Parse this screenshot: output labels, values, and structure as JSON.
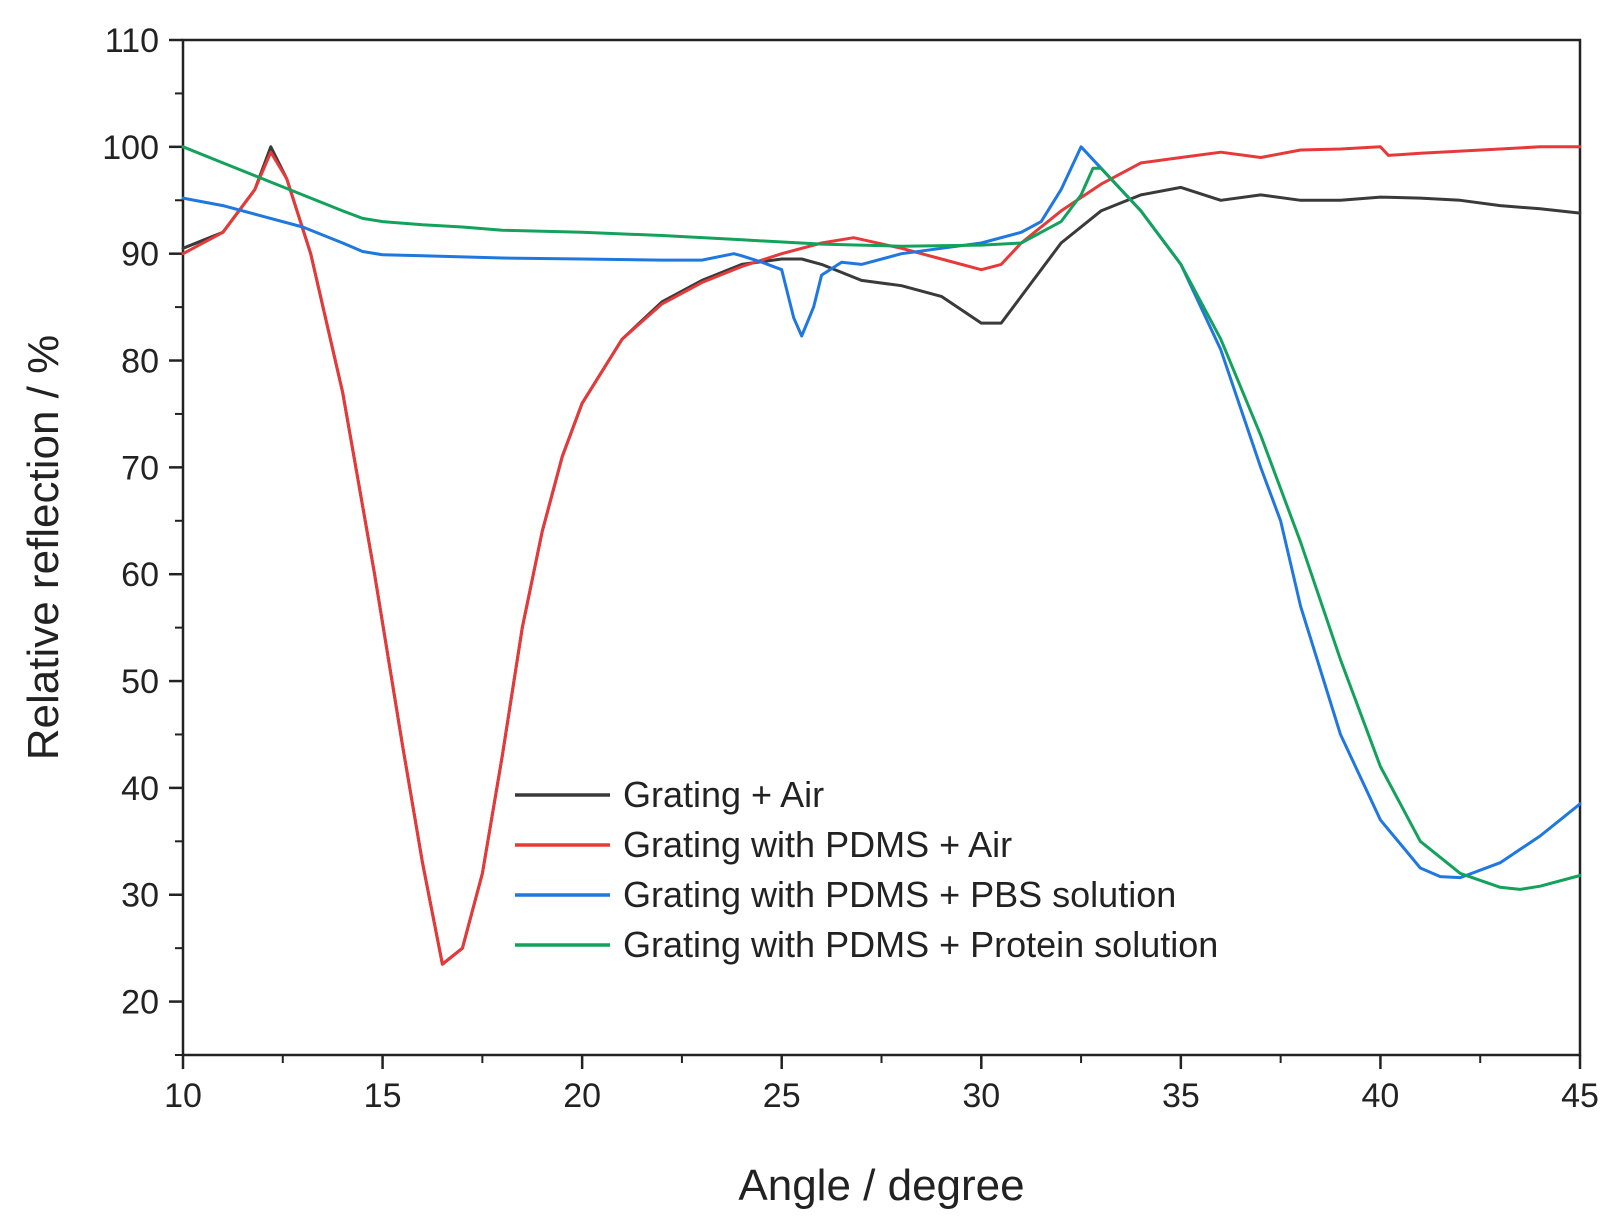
{
  "chart_data": {
    "type": "line",
    "title": "",
    "xlabel": "Angle / degree",
    "ylabel": "Relative reflection / %",
    "xlim": [
      10,
      45
    ],
    "ylim": [
      15,
      110
    ],
    "xticks": [
      10,
      15,
      20,
      25,
      30,
      35,
      40,
      45
    ],
    "yticks": [
      20,
      30,
      40,
      50,
      60,
      70,
      80,
      90,
      100,
      110
    ],
    "grid": false,
    "legend_position": "bottom-center",
    "series": [
      {
        "name": "Grating + Air",
        "color": "#3a3a3a",
        "points": [
          [
            10,
            90.5
          ],
          [
            11,
            92
          ],
          [
            11.8,
            96
          ],
          [
            12.2,
            100
          ],
          [
            12.6,
            97
          ],
          [
            13.2,
            90
          ],
          [
            14,
            77
          ],
          [
            14.8,
            60
          ],
          [
            15.5,
            44
          ],
          [
            16,
            33
          ],
          [
            16.5,
            23.5
          ],
          [
            17,
            25
          ],
          [
            17.5,
            32
          ],
          [
            18,
            43
          ],
          [
            18.5,
            55
          ],
          [
            19,
            64
          ],
          [
            19.5,
            71
          ],
          [
            20,
            76
          ],
          [
            21,
            82
          ],
          [
            22,
            85.5
          ],
          [
            23,
            87.5
          ],
          [
            24,
            89
          ],
          [
            25,
            89.5
          ],
          [
            25.5,
            89.5
          ],
          [
            26,
            89
          ],
          [
            27,
            87.5
          ],
          [
            28,
            87
          ],
          [
            29,
            86
          ],
          [
            30,
            83.5
          ],
          [
            30.5,
            83.5
          ],
          [
            31,
            86
          ],
          [
            32,
            91
          ],
          [
            33,
            94
          ],
          [
            34,
            95.5
          ],
          [
            35,
            96.2
          ],
          [
            36,
            95
          ],
          [
            37,
            95.5
          ],
          [
            38,
            95
          ],
          [
            39,
            95
          ],
          [
            40,
            95.3
          ],
          [
            41,
            95.2
          ],
          [
            42,
            95
          ],
          [
            43,
            94.5
          ],
          [
            44,
            94.2
          ],
          [
            45,
            93.8
          ]
        ]
      },
      {
        "name": "Grating with PDMS + Air",
        "color": "#e8393a",
        "points": [
          [
            10,
            90
          ],
          [
            11,
            92
          ],
          [
            11.8,
            96
          ],
          [
            12.2,
            99.5
          ],
          [
            12.6,
            97
          ],
          [
            13.2,
            90
          ],
          [
            14,
            77
          ],
          [
            14.8,
            60
          ],
          [
            15.5,
            44
          ],
          [
            16,
            33
          ],
          [
            16.5,
            23.5
          ],
          [
            17,
            25
          ],
          [
            17.5,
            32
          ],
          [
            18,
            43
          ],
          [
            18.5,
            55
          ],
          [
            19,
            64
          ],
          [
            19.5,
            71
          ],
          [
            20,
            76
          ],
          [
            21,
            82
          ],
          [
            22,
            85.3
          ],
          [
            23,
            87.3
          ],
          [
            24,
            88.8
          ],
          [
            25,
            90
          ],
          [
            26,
            91
          ],
          [
            26.8,
            91.5
          ],
          [
            28,
            90.5
          ],
          [
            29,
            89.5
          ],
          [
            30,
            88.5
          ],
          [
            30.5,
            89
          ],
          [
            31,
            91
          ],
          [
            32,
            94
          ],
          [
            33,
            96.5
          ],
          [
            34,
            98.5
          ],
          [
            35,
            99
          ],
          [
            36,
            99.5
          ],
          [
            37,
            99
          ],
          [
            38,
            99.7
          ],
          [
            39,
            99.8
          ],
          [
            40,
            100
          ],
          [
            40.2,
            99.2
          ],
          [
            41,
            99.4
          ],
          [
            42,
            99.6
          ],
          [
            43,
            99.8
          ],
          [
            44,
            100
          ],
          [
            45,
            100
          ]
        ]
      },
      {
        "name": "Grating with PDMS + PBS solution",
        "color": "#1f77e0",
        "points": [
          [
            10,
            95.2
          ],
          [
            11,
            94.5
          ],
          [
            12,
            93.5
          ],
          [
            13,
            92.5
          ],
          [
            14,
            91
          ],
          [
            14.5,
            90.2
          ],
          [
            15,
            89.9
          ],
          [
            16,
            89.8
          ],
          [
            17,
            89.7
          ],
          [
            18,
            89.6
          ],
          [
            20,
            89.5
          ],
          [
            22,
            89.4
          ],
          [
            23,
            89.4
          ],
          [
            23.8,
            90
          ],
          [
            24,
            89.8
          ],
          [
            24.5,
            89.2
          ],
          [
            25,
            88.5
          ],
          [
            25.3,
            84
          ],
          [
            25.5,
            82.3
          ],
          [
            25.8,
            85
          ],
          [
            26,
            88
          ],
          [
            26.5,
            89.2
          ],
          [
            27,
            89
          ],
          [
            28,
            90
          ],
          [
            29,
            90.5
          ],
          [
            30,
            91
          ],
          [
            31,
            92
          ],
          [
            31.5,
            93
          ],
          [
            32,
            96
          ],
          [
            32.5,
            100
          ],
          [
            33,
            98
          ],
          [
            34,
            94
          ],
          [
            35,
            89
          ],
          [
            36,
            81
          ],
          [
            37,
            70
          ],
          [
            37.5,
            65
          ],
          [
            38,
            57
          ],
          [
            39,
            45
          ],
          [
            40,
            37
          ],
          [
            41,
            32.5
          ],
          [
            41.5,
            31.7
          ],
          [
            42,
            31.6
          ],
          [
            43,
            33
          ],
          [
            44,
            35.5
          ],
          [
            45,
            38.5
          ]
        ]
      },
      {
        "name": "Grating with PDMS + Protein solution",
        "color": "#13a25b",
        "points": [
          [
            10,
            100
          ],
          [
            11,
            98.5
          ],
          [
            12,
            97
          ],
          [
            13,
            95.5
          ],
          [
            14,
            94
          ],
          [
            14.5,
            93.3
          ],
          [
            15,
            93
          ],
          [
            16,
            92.7
          ],
          [
            17,
            92.5
          ],
          [
            18,
            92.2
          ],
          [
            20,
            92
          ],
          [
            22,
            91.7
          ],
          [
            24,
            91.3
          ],
          [
            26,
            90.9
          ],
          [
            28,
            90.7
          ],
          [
            30,
            90.8
          ],
          [
            31,
            91
          ],
          [
            32,
            93
          ],
          [
            32.5,
            95.5
          ],
          [
            32.8,
            98
          ],
          [
            33,
            98
          ],
          [
            34,
            94
          ],
          [
            35,
            89
          ],
          [
            36,
            82
          ],
          [
            37,
            73
          ],
          [
            38,
            63
          ],
          [
            39,
            52
          ],
          [
            40,
            42
          ],
          [
            41,
            35
          ],
          [
            42,
            32
          ],
          [
            43,
            30.7
          ],
          [
            43.5,
            30.5
          ],
          [
            44,
            30.8
          ],
          [
            45,
            31.8
          ]
        ]
      }
    ]
  }
}
